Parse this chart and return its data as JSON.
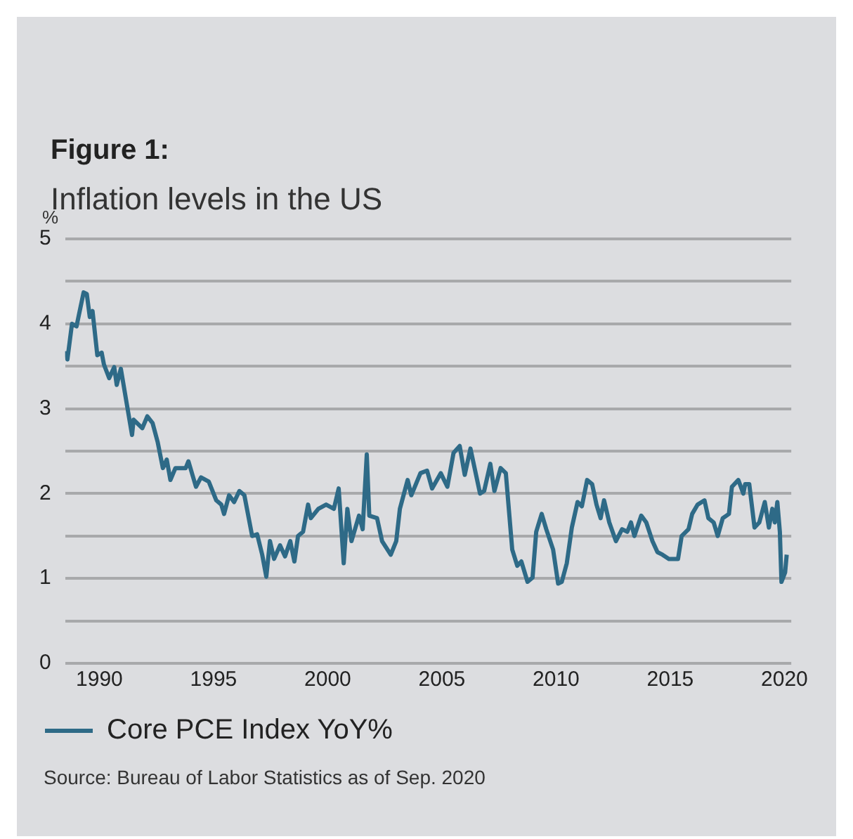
{
  "chart_data": {
    "type": "line",
    "title": "Figure 1:",
    "subtitle": "Inflation levels in the US",
    "ylabel": "%",
    "annotations": [
      "Source: Bureau of Labor Statistics as of Sep. 2020"
    ],
    "x": [
      1988.53,
      1988.6,
      1988.8,
      1989.0,
      1989.1,
      1989.31,
      1989.45,
      1989.58,
      1989.7,
      1989.91,
      1990.1,
      1990.2,
      1990.43,
      1990.65,
      1990.76,
      1990.94,
      1991.21,
      1991.43,
      1991.5,
      1991.88,
      1992.1,
      1992.33,
      1992.55,
      1992.78,
      1992.95,
      1993.11,
      1993.33,
      1993.78,
      1993.9,
      1994.23,
      1994.45,
      1994.79,
      1995.12,
      1995.34,
      1995.46,
      1995.68,
      1995.9,
      1996.13,
      1996.35,
      1996.69,
      1996.91,
      1997.13,
      1997.31,
      1997.47,
      1997.65,
      1997.91,
      1998.13,
      1998.36,
      1998.54,
      1998.7,
      1998.92,
      1999.14,
      1999.26,
      1999.59,
      1999.93,
      2000.27,
      2000.48,
      2000.7,
      2000.86,
      2001.04,
      2001.37,
      2001.53,
      2001.71,
      2001.82,
      2002.16,
      2002.38,
      2002.76,
      2003.0,
      2003.16,
      2003.5,
      2003.66,
      2004.06,
      2004.35,
      2004.57,
      2004.95,
      2005.24,
      2005.51,
      2005.78,
      2006.0,
      2006.25,
      2006.67,
      2006.85,
      2007.12,
      2007.3,
      2007.57,
      2007.8,
      2008.08,
      2008.3,
      2008.48,
      2008.75,
      2008.97,
      2009.13,
      2009.37,
      2009.57,
      2009.87,
      2010.09,
      2010.25,
      2010.47,
      2010.69,
      2010.94,
      2011.13,
      2011.36,
      2011.58,
      2011.77,
      2011.95,
      2012.1,
      2012.33,
      2012.62,
      2012.89,
      2013.12,
      2013.28,
      2013.43,
      2013.73,
      2013.95,
      2014.22,
      2014.44,
      2014.66,
      2014.94,
      2015.34,
      2015.5,
      2015.8,
      2015.96,
      2016.2,
      2016.5,
      2016.67,
      2016.9,
      2017.08,
      2017.3,
      2017.57,
      2017.7,
      2017.98,
      2018.2,
      2018.28,
      2018.46,
      2018.69,
      2018.9,
      2019.14,
      2019.32,
      2019.47,
      2019.58,
      2019.69,
      2019.8,
      2019.87,
      2020.03,
      2020.1
    ],
    "series": [
      {
        "name": "Core PCE Index YoY%",
        "color": "#2e6a87",
        "values": [
          3.68,
          3.58,
          4.0,
          3.97,
          4.1,
          4.37,
          4.35,
          4.08,
          4.15,
          3.63,
          3.66,
          3.52,
          3.36,
          3.49,
          3.28,
          3.47,
          3.04,
          2.69,
          2.87,
          2.77,
          2.91,
          2.83,
          2.61,
          2.3,
          2.4,
          2.16,
          2.3,
          2.3,
          2.38,
          2.08,
          2.19,
          2.14,
          1.92,
          1.87,
          1.76,
          1.98,
          1.9,
          2.03,
          1.98,
          1.5,
          1.52,
          1.28,
          1.02,
          1.44,
          1.23,
          1.39,
          1.26,
          1.44,
          1.2,
          1.5,
          1.55,
          1.87,
          1.71,
          1.82,
          1.87,
          1.82,
          2.06,
          1.18,
          1.82,
          1.44,
          1.74,
          1.58,
          2.46,
          1.74,
          1.71,
          1.44,
          1.28,
          1.44,
          1.82,
          2.16,
          1.98,
          2.24,
          2.27,
          2.06,
          2.24,
          2.08,
          2.48,
          2.56,
          2.22,
          2.53,
          2.0,
          2.03,
          2.35,
          2.03,
          2.3,
          2.24,
          1.34,
          1.15,
          1.2,
          0.96,
          1.01,
          1.55,
          1.76,
          1.58,
          1.34,
          0.94,
          0.96,
          1.18,
          1.6,
          1.9,
          1.85,
          2.16,
          2.11,
          1.87,
          1.71,
          1.92,
          1.66,
          1.44,
          1.58,
          1.55,
          1.66,
          1.5,
          1.74,
          1.66,
          1.44,
          1.31,
          1.28,
          1.23,
          1.23,
          1.5,
          1.58,
          1.76,
          1.87,
          1.92,
          1.71,
          1.66,
          1.5,
          1.71,
          1.76,
          2.08,
          2.16,
          2.0,
          2.11,
          2.11,
          1.6,
          1.66,
          1.9,
          1.6,
          1.82,
          1.66,
          1.9,
          1.55,
          0.96,
          1.07,
          1.28
        ]
      }
    ],
    "xlim": [
      1988.5,
      2020.3
    ],
    "xticks": [
      1990,
      1995,
      2000,
      2005,
      2010,
      2015,
      2020
    ],
    "ylim": [
      0,
      5
    ],
    "yticks": [
      0,
      {
        "value": 0.5,
        "label": null
      },
      1,
      {
        "value": 1.5,
        "label": null
      },
      2,
      {
        "value": 2.5,
        "label": null
      },
      3,
      {
        "value": 3.5,
        "label": null
      },
      4,
      {
        "value": 4.5,
        "label": null
      },
      5
    ],
    "grid": "y",
    "legend": "bottom left",
    "marker": "none",
    "line_style": "solid"
  }
}
